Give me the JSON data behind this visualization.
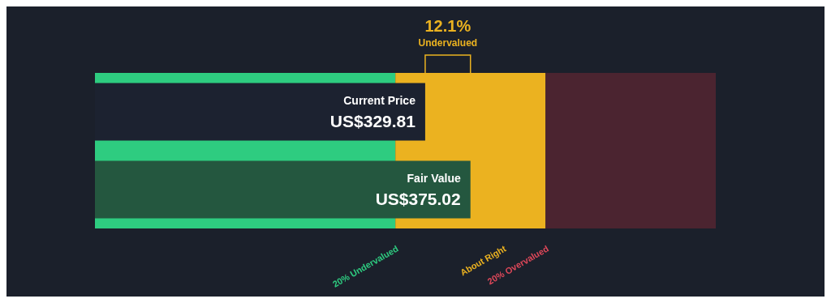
{
  "chart_data": {
    "type": "bar",
    "orientation": "horizontal",
    "categories": [
      "Current Price",
      "Fair Value"
    ],
    "values": [
      329.81,
      375.02
    ],
    "colors": [
      "#1c2230",
      "#24573f"
    ],
    "value_labels": [
      "US$329.81",
      "US$375.02"
    ],
    "xlim": [
      0,
      620
    ],
    "tick_labels": false,
    "bands": [
      {
        "axis": "x",
        "from": 0,
        "to": 300.02,
        "label": "20% Undervalued",
        "color": "#2ecc80"
      },
      {
        "axis": "x",
        "from": 300.02,
        "to": 450.02,
        "label": "About Right",
        "color": "#ebb220"
      },
      {
        "axis": "x",
        "from": 450.02,
        "to": 620,
        "label": "20% Overvalued",
        "color": "#4b2430"
      }
    ],
    "annotations": [
      "12.1%",
      "Undervalued"
    ]
  }
}
